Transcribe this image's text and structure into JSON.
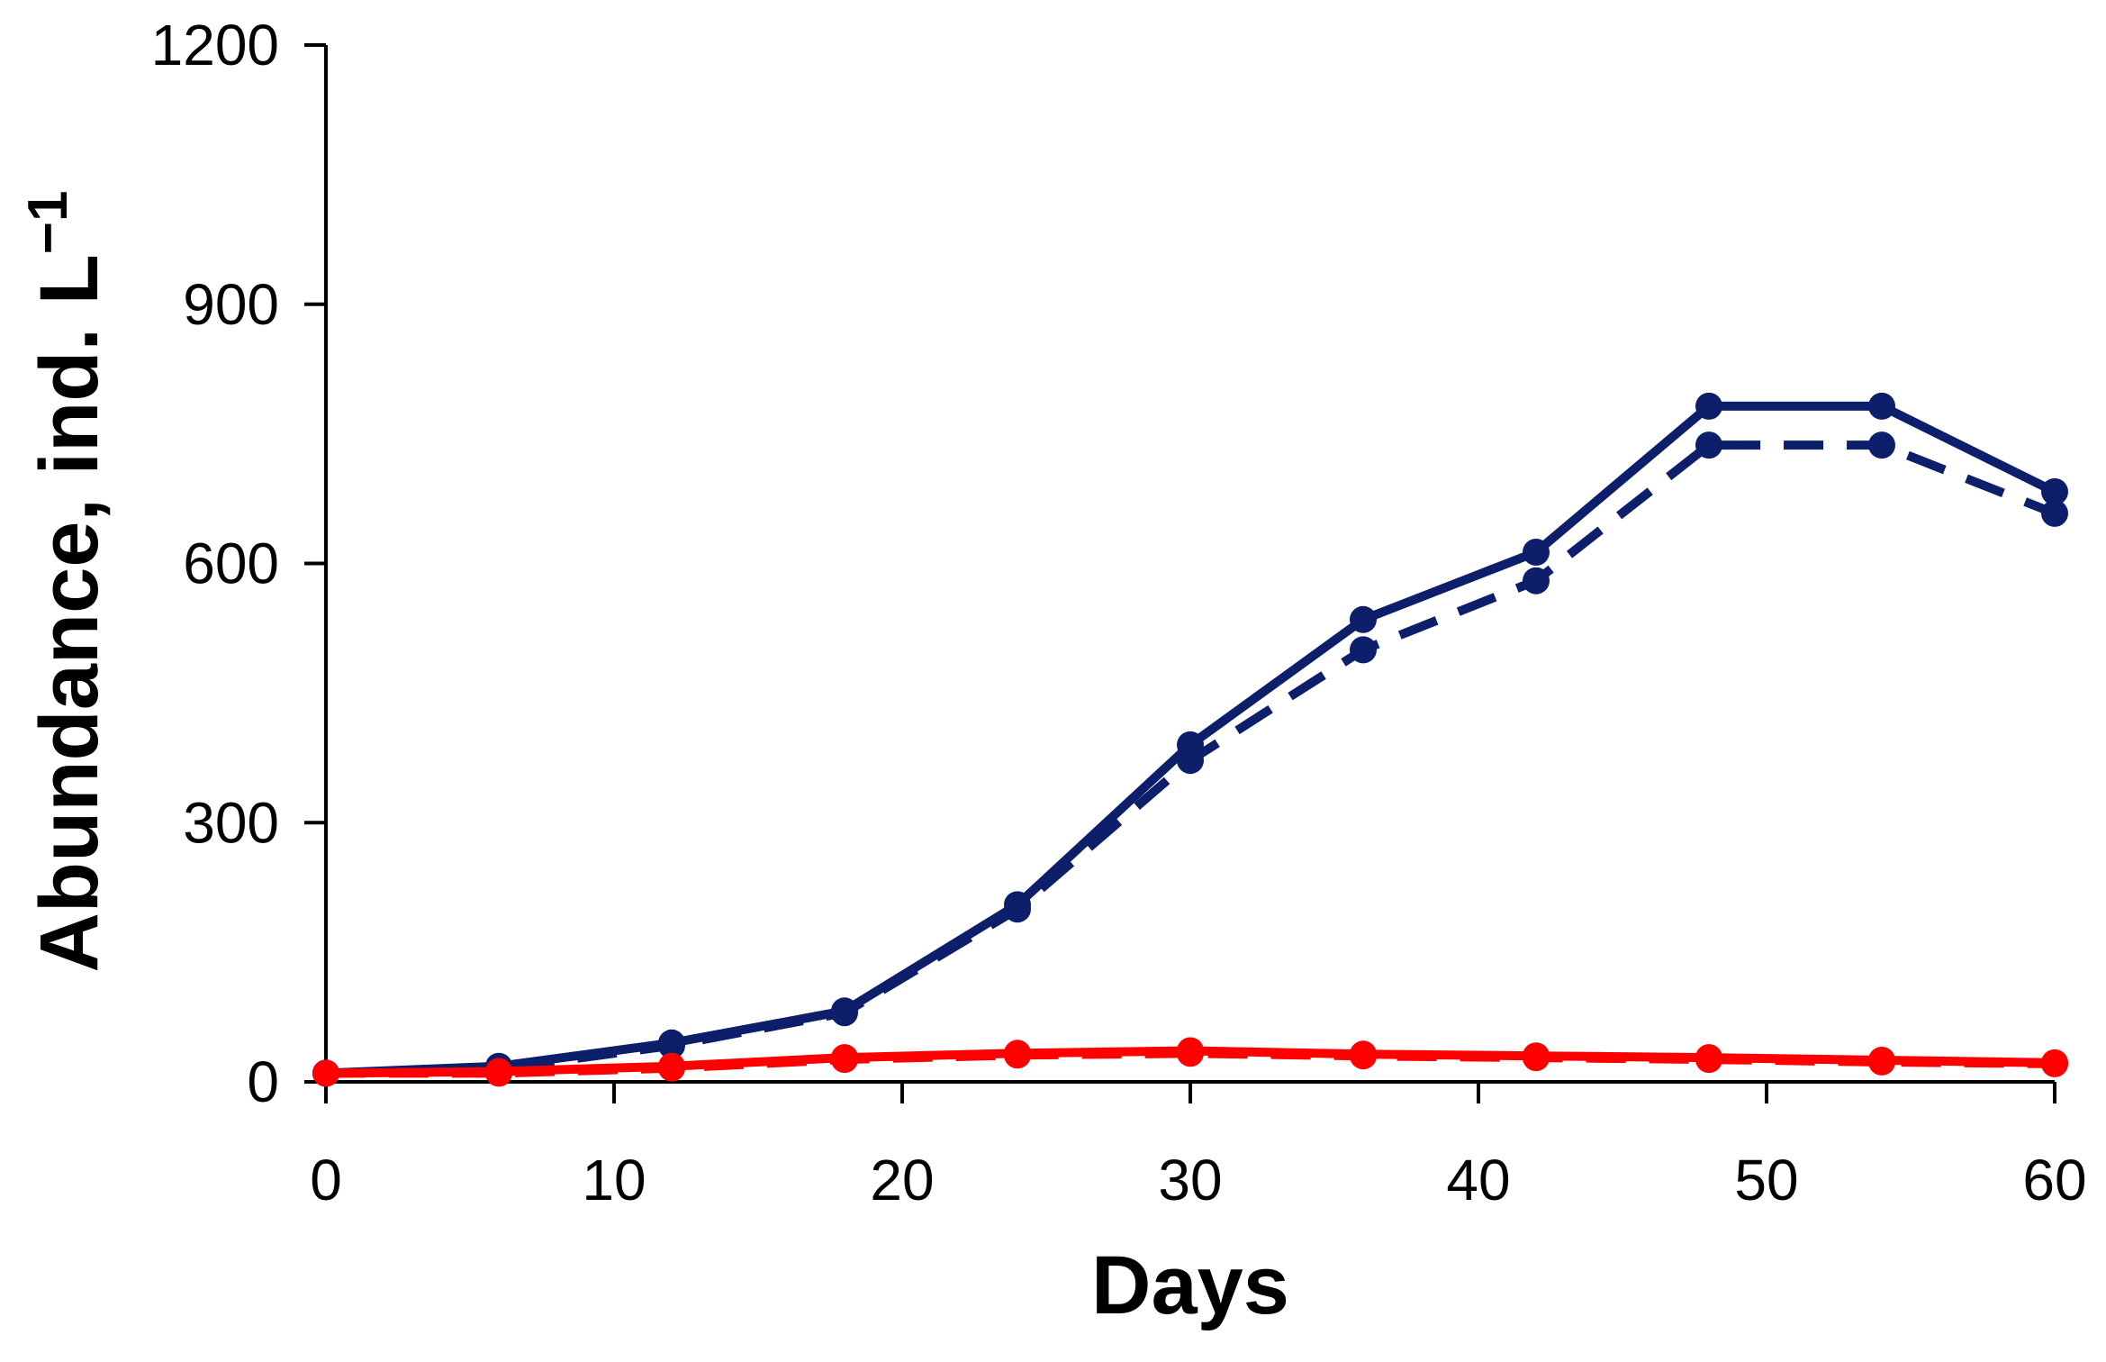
{
  "chart_data": {
    "type": "line",
    "title": "",
    "xlabel": "Days",
    "ylabel": "Abundance, ind. L",
    "ylabel_superscript": "−1",
    "xlim": [
      0,
      60
    ],
    "ylim": [
      0,
      1200
    ],
    "xticks": [
      "0",
      "10",
      "20",
      "30",
      "40",
      "50",
      "60"
    ],
    "yticks": [
      "0",
      "300",
      "600",
      "900",
      "1200"
    ],
    "grid": false,
    "legend": "none",
    "x": [
      0,
      6,
      12,
      18,
      24,
      30,
      36,
      42,
      48,
      54,
      60
    ],
    "series": [
      {
        "color": "#0d1f6b",
        "style": "solid",
        "values": [
          10,
          18,
          45,
          82,
          205,
          390,
          535,
          613,
          782,
          782,
          683
        ]
      },
      {
        "color": "#0d1f6b",
        "style": "dashed",
        "values": [
          10,
          15,
          42,
          80,
          200,
          372,
          500,
          580,
          737,
          737,
          658
        ]
      },
      {
        "color": "#ff0000",
        "style": "solid",
        "values": [
          10,
          12,
          18,
          28,
          33,
          36,
          32,
          30,
          28,
          25,
          22
        ]
      },
      {
        "color": "#ff0000",
        "style": "dashed",
        "values": [
          10,
          10,
          16,
          26,
          31,
          33,
          30,
          28,
          26,
          23,
          21
        ]
      }
    ]
  }
}
